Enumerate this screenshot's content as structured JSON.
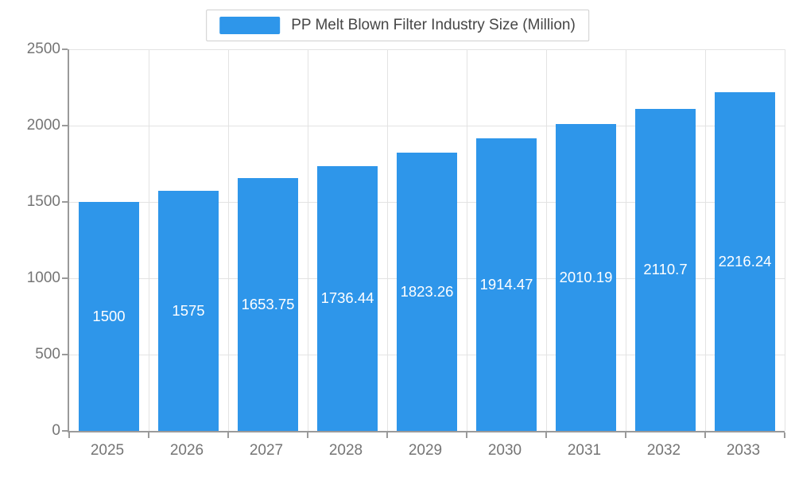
{
  "chart_data": {
    "type": "bar",
    "title": "PP Melt Blown Filter Industry Size (Million)",
    "categories": [
      "2025",
      "2026",
      "2027",
      "2028",
      "2029",
      "2030",
      "2031",
      "2032",
      "2033"
    ],
    "values": [
      1500,
      1575,
      1653.75,
      1736.44,
      1823.26,
      1914.47,
      2010.19,
      2110.7,
      2216.24
    ],
    "value_labels": [
      "1500",
      "1575",
      "1653.75",
      "1736.44",
      "1823.26",
      "1914.47",
      "2010.19",
      "2110.7",
      "2216.24"
    ],
    "ylim": [
      0,
      2500
    ],
    "y_ticks": [
      0,
      500,
      1000,
      1500,
      2000,
      2500
    ],
    "xlabel": "",
    "ylabel": "",
    "grid": true,
    "legend_position": "top",
    "legend_entries": [
      "PP Melt Blown Filter Industry Size (Million)"
    ]
  },
  "colors": {
    "bar": "#2E96EA",
    "grid": "#e3e3e3",
    "axis": "#9a9a9a",
    "tick_text": "#757575",
    "bar_label_text": "#ffffff",
    "legend_text": "#464646",
    "legend_border": "#cfcfcf"
  }
}
